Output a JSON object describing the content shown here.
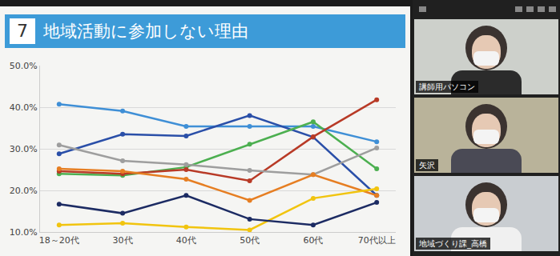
{
  "section_number": "7",
  "chart_data": {
    "type": "line",
    "title": "地域活動に参加しない理由",
    "categories": [
      "18～20代",
      "30代",
      "40代",
      "50代",
      "60代",
      "70代以上"
    ],
    "series": [
      {
        "color": "#3f8fd6",
        "values": [
          40.7,
          39.1,
          35.4,
          35.4,
          35.4,
          31.7
        ]
      },
      {
        "color": "#2a4fa8",
        "values": [
          28.8,
          33.5,
          33.1,
          38.0,
          32.8,
          18.8
        ]
      },
      {
        "color": "#4caf50",
        "values": [
          24.0,
          23.6,
          25.6,
          31.1,
          36.5,
          25.2
        ]
      },
      {
        "color": "#b83a26",
        "values": [
          24.6,
          24.0,
          25.0,
          22.3,
          32.9,
          41.8
        ]
      },
      {
        "color": "#9e9e9e",
        "values": [
          30.9,
          27.1,
          26.2,
          24.8,
          23.8,
          30.2
        ]
      },
      {
        "color": "#e67e22",
        "values": [
          25.2,
          24.6,
          22.7,
          17.6,
          23.8,
          18.8
        ]
      },
      {
        "color": "#f1c40f",
        "values": [
          11.7,
          12.1,
          11.2,
          10.5,
          18.1,
          20.4
        ]
      },
      {
        "color": "#1c2b63",
        "values": [
          16.7,
          14.5,
          18.8,
          13.1,
          11.7,
          17.1
        ]
      }
    ],
    "ylim": [
      10,
      50
    ],
    "yticks": [
      {
        "value": 10,
        "label": "10.0%"
      },
      {
        "value": 20,
        "label": "20.0%"
      },
      {
        "value": 30,
        "label": "30.0%"
      },
      {
        "value": 40,
        "label": "40.0%"
      },
      {
        "value": 50,
        "label": "50.0%"
      }
    ],
    "grid": true,
    "marker": "circle"
  },
  "video_panel": {
    "participants": [
      "講師用パソコン",
      "矢沢",
      "地域づくり課_高橋"
    ]
  }
}
